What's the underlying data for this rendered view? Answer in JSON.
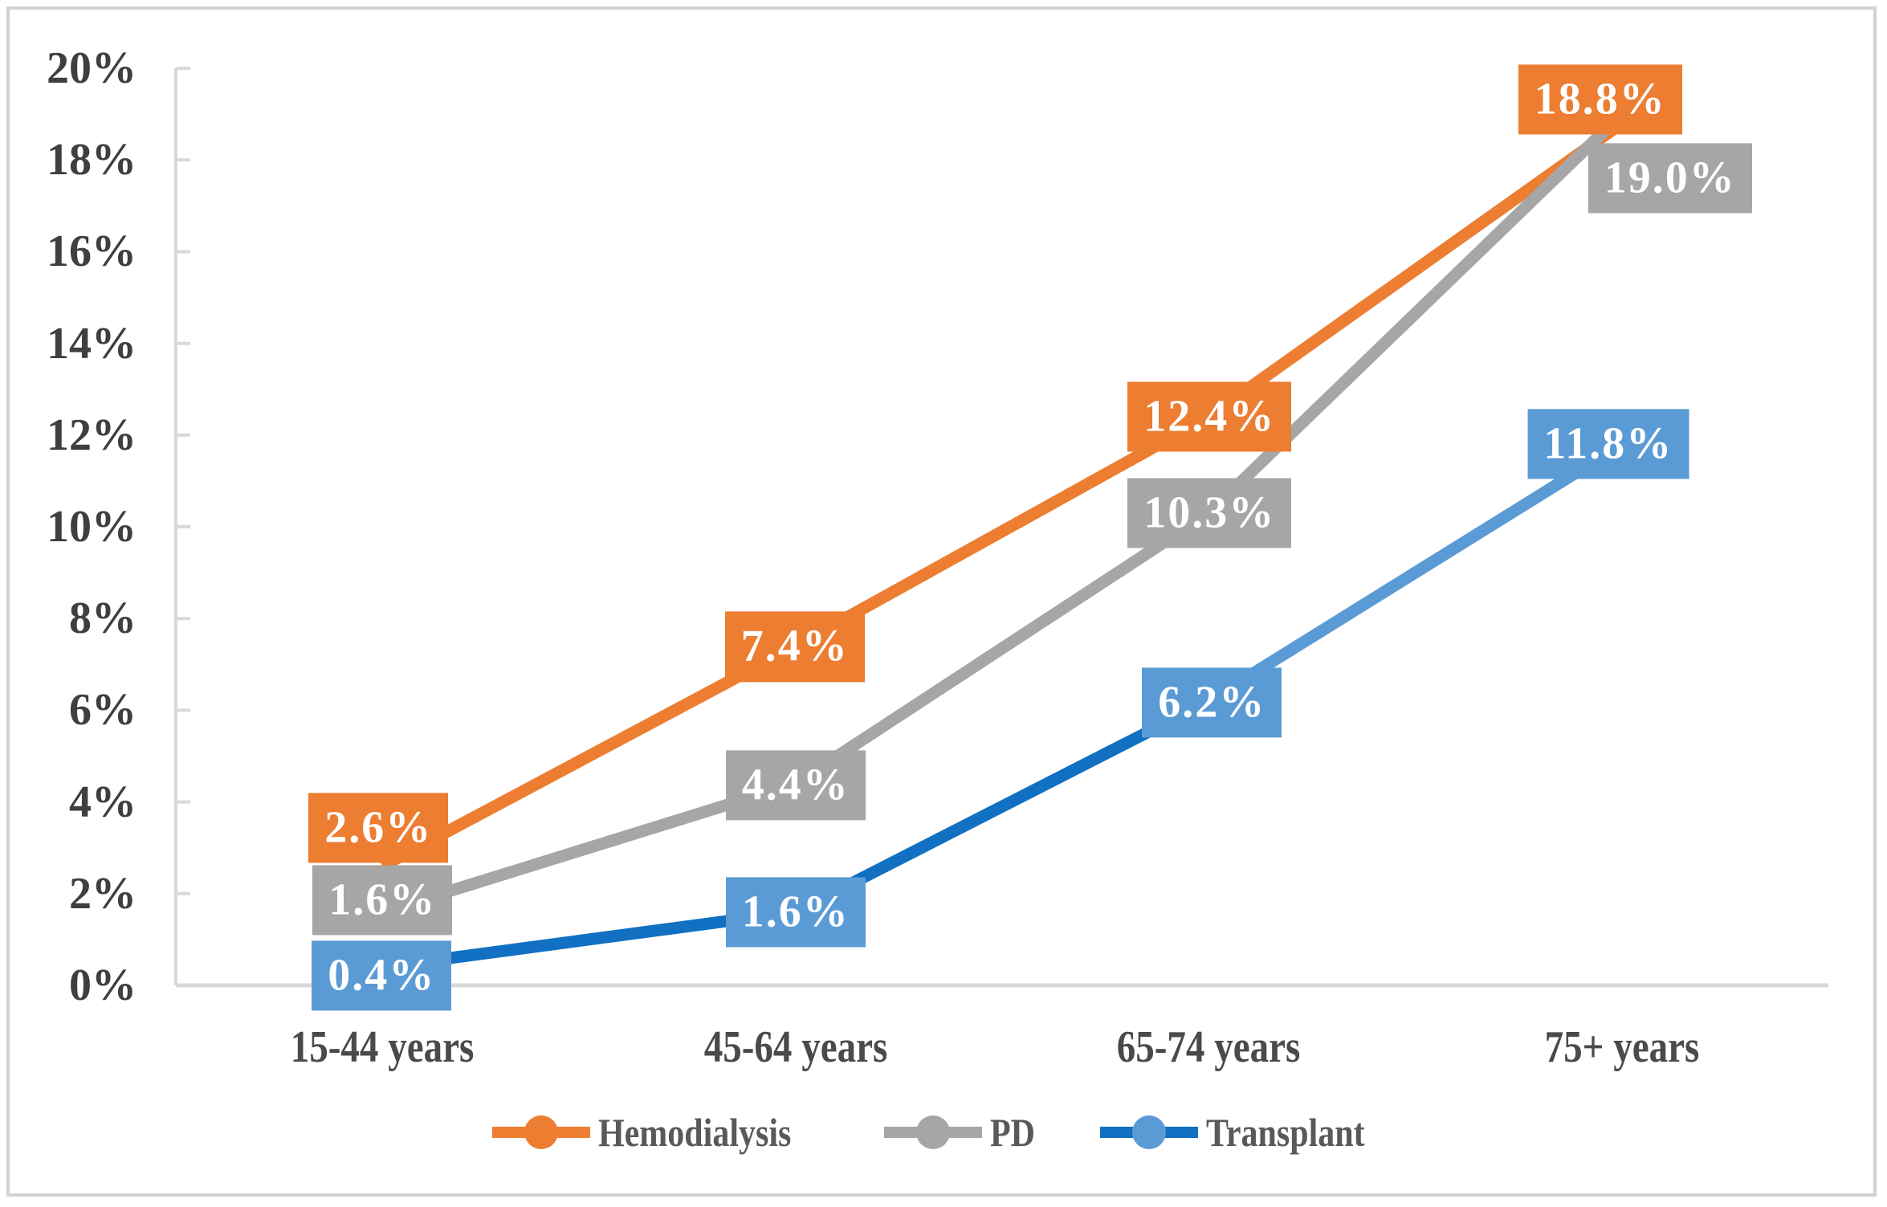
{
  "figure": {
    "background": "#FFFFFF",
    "border_color": "#D2D2D2"
  },
  "chart_data": {
    "type": "line",
    "title": "",
    "categories": [
      "15-44 years",
      "45-64 years",
      "65-74 years",
      "75+ years"
    ],
    "series": [
      {
        "name": "Hemodialysis",
        "values": [
          2.6,
          7.4,
          12.4,
          18.8
        ],
        "data_labels": [
          "2.6%",
          "7.4%",
          "12.4%",
          "18.8%"
        ],
        "line_color": "#ED7D31",
        "marker_color": "#ED7D31",
        "label_bg": "#ED7D31",
        "label_text_color": "#FFFFFF"
      },
      {
        "name": "PD",
        "values": [
          1.6,
          4.4,
          10.3,
          19.0
        ],
        "data_labels": [
          "1.6%",
          "4.4%",
          "10.3%",
          "19.0%"
        ],
        "line_color": "#A6A6A6",
        "marker_color": "#A6A6A6",
        "label_bg": "#A6A6A6",
        "label_text_color": "#FFFFFF"
      },
      {
        "name": "Transplant",
        "values": [
          0.4,
          1.6,
          6.2,
          11.8
        ],
        "data_labels": [
          "0.4%",
          "1.6%",
          "6.2%",
          "11.8%"
        ],
        "line_color": "#1170C1",
        "segment_colors": [
          "#1170C1",
          "#1170C1",
          "#5B9BD5"
        ],
        "marker_color": "#5B9BD5",
        "label_bg": "#5B9BD5",
        "label_text_color": "#FFFFFF"
      }
    ],
    "y_axis": {
      "min": 0,
      "max": 20,
      "tick_step": 2,
      "tick_labels": [
        "0%",
        "2%",
        "4%",
        "6%",
        "8%",
        "10%",
        "12%",
        "14%",
        "16%",
        "18%",
        "20%"
      ],
      "axis_color": "#D9D9D9",
      "label_color": "#3F3F3F"
    },
    "x_axis": {
      "label_color": "#4A4A4A"
    },
    "legend": {
      "position": "bottom",
      "text_color": "#595959"
    },
    "grid": false
  }
}
